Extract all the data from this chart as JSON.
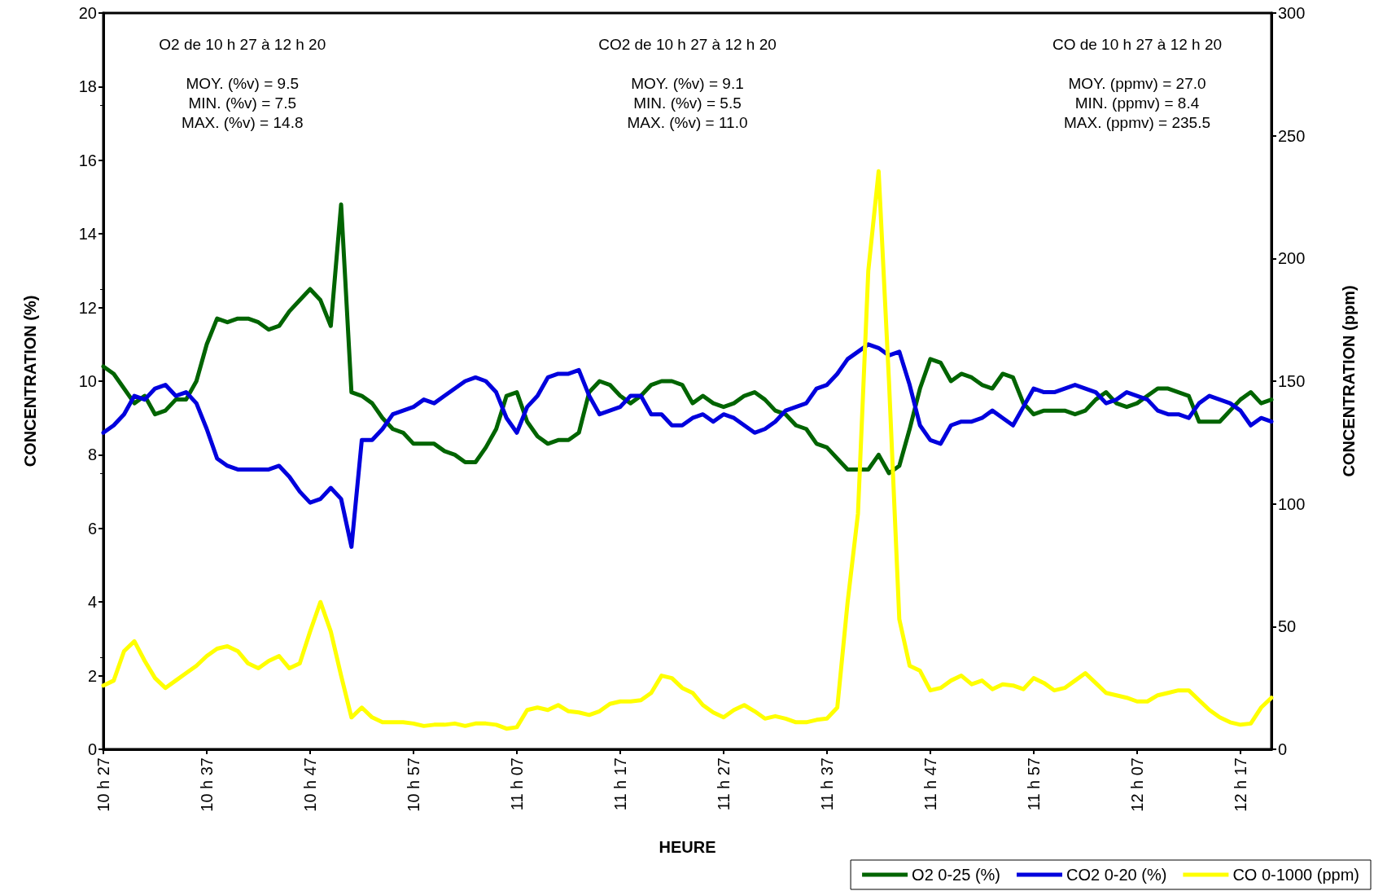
{
  "chart_data": {
    "type": "line",
    "xlabel": "HEURE",
    "ylabel": "CONCENTRATION (%)",
    "y2label": "CONCENTRATION (ppm)",
    "categories": [
      "10 h 27",
      null,
      null,
      null,
      null,
      null,
      null,
      null,
      null,
      null,
      "10 h 37",
      null,
      null,
      null,
      null,
      null,
      null,
      null,
      null,
      null,
      "10 h 47",
      null,
      null,
      null,
      null,
      null,
      null,
      null,
      null,
      null,
      "10 h 57",
      null,
      null,
      null,
      null,
      null,
      null,
      null,
      null,
      null,
      "11 h 07",
      null,
      null,
      null,
      null,
      null,
      null,
      null,
      null,
      null,
      "11 h 17",
      null,
      null,
      null,
      null,
      null,
      null,
      null,
      null,
      null,
      "11 h 27",
      null,
      null,
      null,
      null,
      null,
      null,
      null,
      null,
      null,
      "11 h 37",
      null,
      null,
      null,
      null,
      null,
      null,
      null,
      null,
      null,
      "11 h 47",
      null,
      null,
      null,
      null,
      null,
      null,
      null,
      null,
      null,
      "11 h 57",
      null,
      null,
      null,
      null,
      null,
      null,
      null,
      null,
      null,
      "12 h 07",
      null,
      null,
      null,
      null,
      null,
      null,
      null,
      null,
      null,
      "12 h 17",
      null,
      null,
      null
    ],
    "series": [
      {
        "name": "O2 0-25 (%)",
        "color": "#006400",
        "values": [
          10.4,
          10.2,
          9.8,
          9.4,
          9.6,
          9.1,
          9.2,
          9.5,
          9.5,
          10.0,
          11.0,
          11.7,
          11.6,
          11.7,
          11.7,
          11.6,
          11.4,
          11.5,
          11.9,
          12.2,
          12.5,
          12.2,
          11.5,
          14.8,
          9.7,
          9.6,
          9.4,
          9.0,
          8.7,
          8.6,
          8.3,
          8.3,
          8.3,
          8.1,
          8.0,
          7.8,
          7.8,
          8.2,
          8.7,
          9.6,
          9.7,
          8.9,
          8.5,
          8.3,
          8.4,
          8.4,
          8.6,
          9.7,
          10.0,
          9.9,
          9.6,
          9.4,
          9.6,
          9.9,
          10.0,
          10.0,
          9.9,
          9.4,
          9.6,
          9.4,
          9.3,
          9.4,
          9.6,
          9.7,
          9.5,
          9.2,
          9.1,
          8.8,
          8.7,
          8.3,
          8.2,
          7.9,
          7.6,
          7.6,
          7.6,
          8.0,
          7.5,
          7.7,
          8.7,
          9.8,
          10.6,
          10.5,
          10.0,
          10.2,
          10.1,
          9.9,
          9.8,
          10.2,
          10.1,
          9.4,
          9.1,
          9.2,
          9.2,
          9.2,
          9.1,
          9.2,
          9.5,
          9.7,
          9.4,
          9.3,
          9.4,
          9.6,
          9.8,
          9.8,
          9.7,
          9.6,
          8.9,
          8.9,
          8.9,
          9.2,
          9.5,
          9.7,
          9.4,
          9.5
        ]
      },
      {
        "name": "CO2 0-20 (%)",
        "color": "#0000dd",
        "values": [
          8.6,
          8.8,
          9.1,
          9.6,
          9.5,
          9.8,
          9.9,
          9.6,
          9.7,
          9.4,
          8.7,
          7.9,
          7.7,
          7.6,
          7.6,
          7.6,
          7.6,
          7.7,
          7.4,
          7.0,
          6.7,
          6.8,
          7.1,
          6.8,
          5.5,
          8.4,
          8.4,
          8.7,
          9.1,
          9.2,
          9.3,
          9.5,
          9.4,
          9.6,
          9.8,
          10.0,
          10.1,
          10.0,
          9.7,
          9.0,
          8.6,
          9.3,
          9.6,
          10.1,
          10.2,
          10.2,
          10.3,
          9.6,
          9.1,
          9.2,
          9.3,
          9.6,
          9.6,
          9.1,
          9.1,
          8.8,
          8.8,
          9.0,
          9.1,
          8.9,
          9.1,
          9.0,
          8.8,
          8.6,
          8.7,
          8.9,
          9.2,
          9.3,
          9.4,
          9.8,
          9.9,
          10.2,
          10.6,
          10.8,
          11.0,
          10.9,
          10.7,
          10.8,
          9.9,
          8.8,
          8.4,
          8.3,
          8.8,
          8.9,
          8.9,
          9.0,
          9.2,
          9.0,
          8.8,
          9.3,
          9.8,
          9.7,
          9.7,
          9.8,
          9.9,
          9.8,
          9.7,
          9.4,
          9.5,
          9.7,
          9.6,
          9.5,
          9.2,
          9.1,
          9.1,
          9.0,
          9.4,
          9.6,
          9.5,
          9.4,
          9.2,
          8.8,
          9.0,
          8.9
        ]
      },
      {
        "name": "CO 0-1000 (ppm)",
        "color": "#ffff00",
        "axis": "y2",
        "values": [
          26,
          28,
          40,
          44,
          36,
          29,
          25,
          28,
          31,
          34,
          38,
          41,
          42,
          40,
          35,
          33,
          36,
          38,
          33,
          35,
          48,
          60,
          48,
          30,
          13,
          17,
          13,
          11,
          11,
          11,
          10.5,
          9.5,
          10,
          10,
          10.5,
          9.5,
          10.5,
          10.5,
          10,
          8.4,
          9,
          16,
          17,
          16,
          18,
          15.5,
          15,
          14,
          15.5,
          18.5,
          19.5,
          19.5,
          20,
          23,
          30,
          29,
          25,
          23,
          18,
          15,
          13,
          16,
          18,
          15.5,
          12.5,
          13.5,
          12.5,
          11,
          11,
          12,
          12.5,
          17,
          60,
          96,
          195,
          235.5,
          150,
          53,
          34,
          32,
          24,
          25,
          28,
          30,
          26.5,
          28,
          24.5,
          26.5,
          26,
          24.5,
          29,
          27,
          24,
          25,
          28,
          31,
          27,
          23,
          22,
          21,
          19.5,
          19.5,
          22,
          23,
          24,
          24,
          20,
          16,
          13,
          11,
          10,
          10.5,
          17,
          21
        ]
      }
    ],
    "ylim": [
      0,
      20
    ],
    "yticks": [
      0,
      2,
      4,
      6,
      8,
      10,
      12,
      14,
      16,
      18,
      20
    ],
    "y2lim": [
      0,
      300
    ],
    "y2ticks": [
      0,
      50,
      100,
      150,
      200,
      250,
      300
    ],
    "annotations": [
      "O2 de 10 h 27 à 12 h 20",
      "CO2 de 10 h 27 à 12 h 20",
      "CO de 10 h 27 à 12 h 20",
      "MOY. (%v) = 9.5\nMIN. (%v) = 7.5\nMAX. (%v) = 14.8",
      "MOY. (%v) = 9.1\nMIN. (%v) = 5.5\nMAX. (%v) = 11.0",
      "MOY. (ppmv) = 27.0\nMIN. (ppmv) = 8.4\nMAX. (ppmv) = 235.5"
    ],
    "grid": false,
    "legend": "bottom right",
    "marker": "none",
    "line_style": "solid"
  }
}
